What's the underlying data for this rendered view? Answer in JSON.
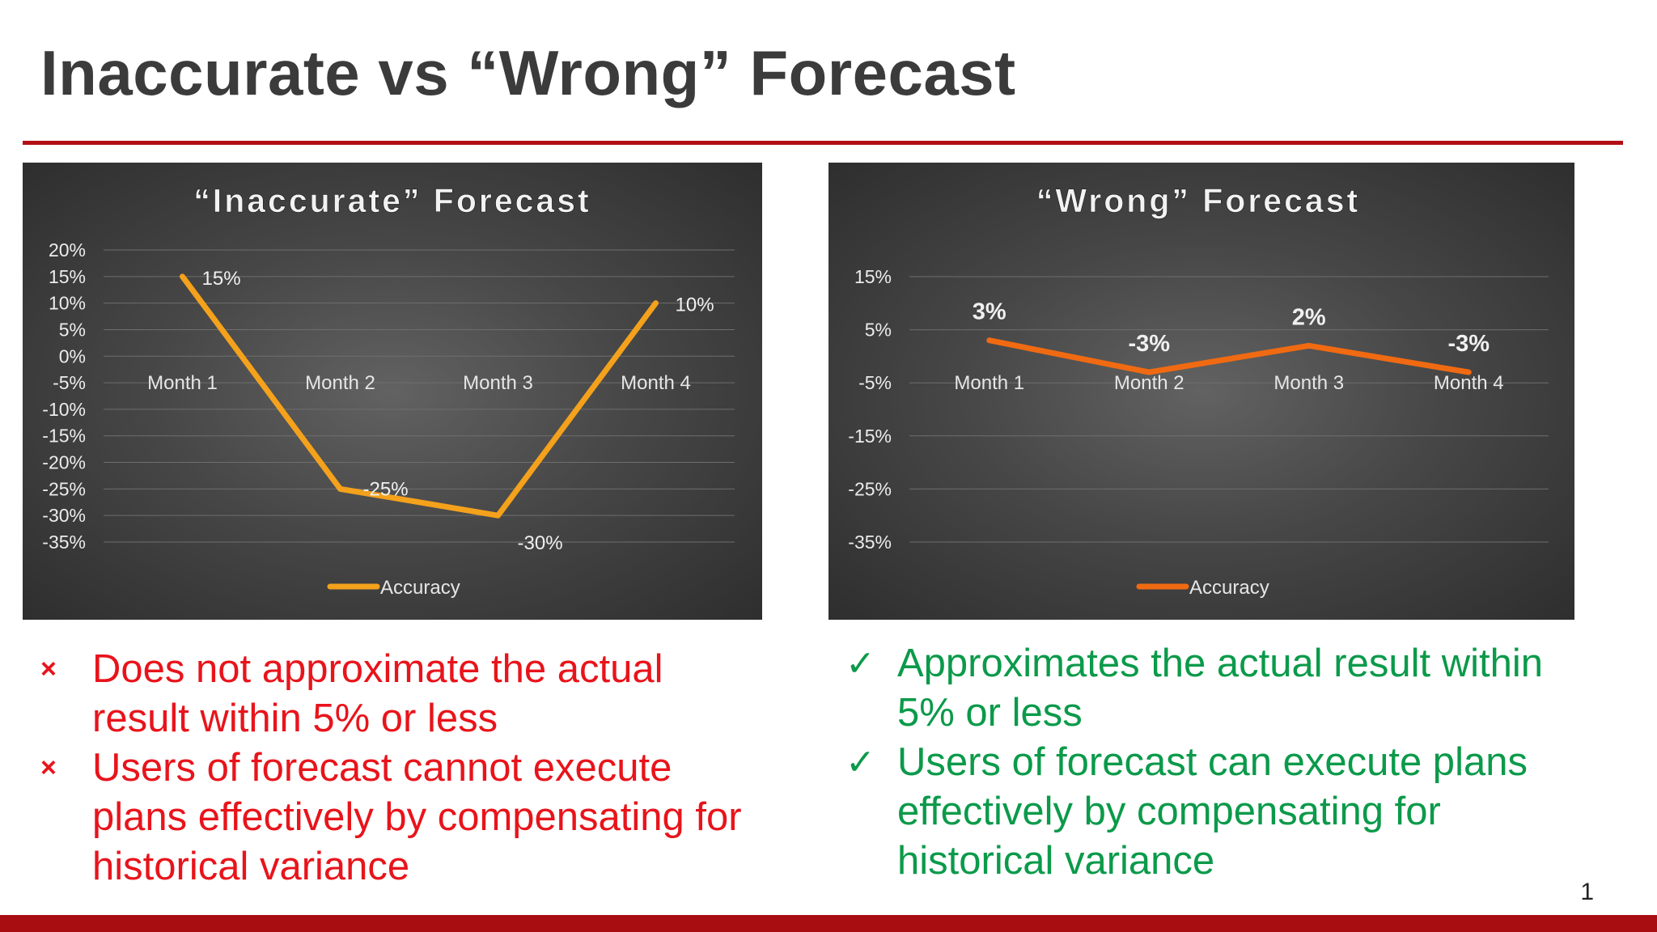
{
  "slide": {
    "title": "Inaccurate vs “Wrong” Forecast",
    "page_number": "1"
  },
  "colors": {
    "accent": "#b20f14",
    "bad": "#e8141b",
    "good": "#0b9a4a",
    "series_left": "#f4a11c",
    "series_right": "#f06a12"
  },
  "chart_data": [
    {
      "type": "line",
      "title": "“Inaccurate” Forecast",
      "categories": [
        "Month 1",
        "Month 2",
        "Month 3",
        "Month 4"
      ],
      "series": [
        {
          "name": "Accuracy",
          "values": [
            15,
            -25,
            -30,
            10
          ]
        }
      ],
      "data_labels": [
        "15%",
        "-25%",
        "-30%",
        "10%"
      ],
      "y_ticks": [
        20,
        15,
        10,
        5,
        0,
        -5,
        -10,
        -15,
        -20,
        -25,
        -30,
        -35
      ],
      "y_tick_labels": [
        "20%",
        "15%",
        "10%",
        "5%",
        "0%",
        "-5%",
        "-10%",
        "-15%",
        "-20%",
        "-25%",
        "-30%",
        "-35%"
      ],
      "ylim": [
        -35,
        20
      ],
      "grid": true,
      "legend": "bottom",
      "xlabel": "",
      "ylabel": ""
    },
    {
      "type": "line",
      "title": "“Wrong” Forecast",
      "categories": [
        "Month 1",
        "Month 2",
        "Month 3",
        "Month 4"
      ],
      "series": [
        {
          "name": "Accuracy",
          "values": [
            3,
            -3,
            2,
            -3
          ]
        }
      ],
      "data_labels": [
        "3%",
        "-3%",
        "2%",
        "-3%"
      ],
      "y_ticks": [
        15,
        5,
        -5,
        -15,
        -25,
        -35
      ],
      "y_tick_labels": [
        "15%",
        "5%",
        "-5%",
        "-15%",
        "-25%",
        "-35%"
      ],
      "ylim": [
        -35,
        15
      ],
      "grid": true,
      "legend": "bottom",
      "xlabel": "",
      "ylabel": ""
    }
  ],
  "bullets_left": {
    "marker": "×",
    "items": [
      "Does not approximate the actual result within 5% or less",
      "Users of forecast cannot execute plans effectively by compensating for historical variance"
    ]
  },
  "bullets_right": {
    "marker": "✓",
    "items": [
      "Approximates the actual result within 5% or less",
      "Users of forecast can execute plans effectively by compensating for historical variance"
    ]
  }
}
